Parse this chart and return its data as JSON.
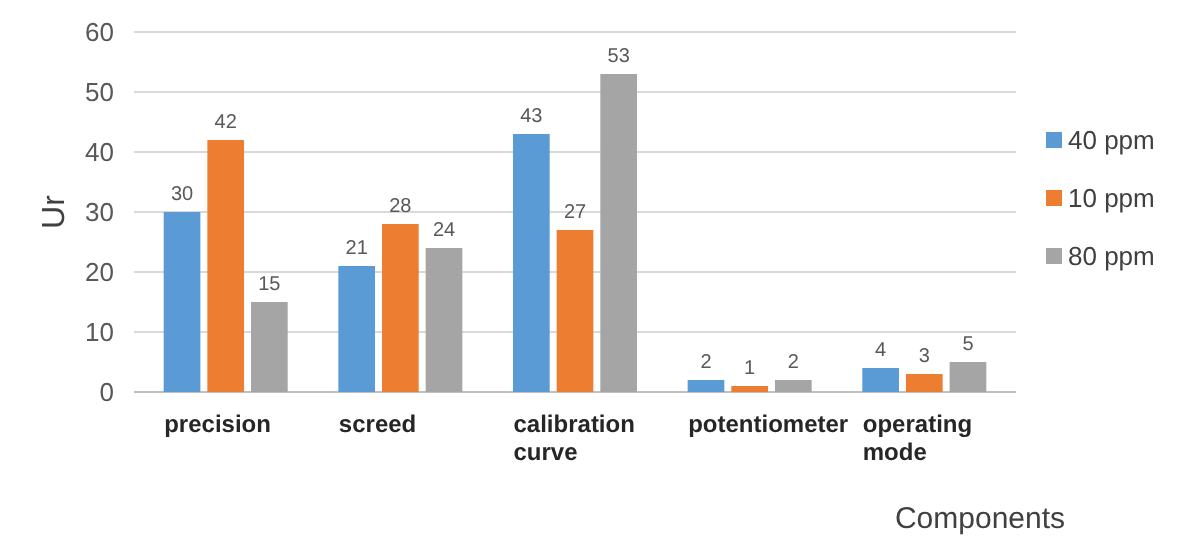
{
  "chart_data": {
    "type": "bar",
    "ylabel": "Ur",
    "xlabel": "Components",
    "categories": [
      "precision",
      "screed",
      "calibration curve",
      "potentiometer",
      "operating mode"
    ],
    "series": [
      {
        "name": "40 ppm",
        "color": "#5b9bd5",
        "values": [
          30,
          21,
          43,
          2,
          4
        ]
      },
      {
        "name": "10 ppm",
        "color": "#ed7d31",
        "values": [
          42,
          28,
          27,
          1,
          3
        ]
      },
      {
        "name": "80 ppm",
        "color": "#a5a5a5",
        "values": [
          15,
          24,
          53,
          2,
          5
        ]
      }
    ],
    "ylim": [
      0,
      60
    ],
    "yticks": [
      0,
      10,
      20,
      30,
      40,
      50,
      60
    ],
    "grid": "y",
    "legend": "right",
    "data_labels": true
  }
}
